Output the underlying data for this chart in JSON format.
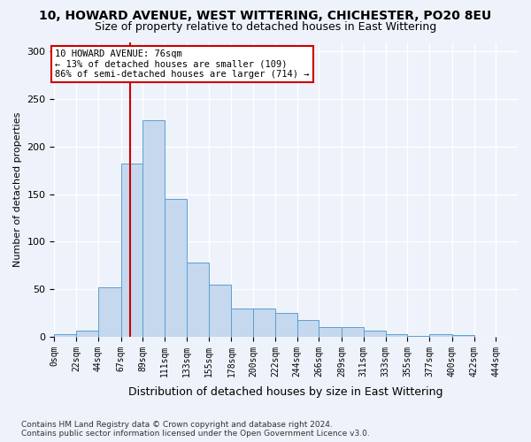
{
  "title": "10, HOWARD AVENUE, WEST WITTERING, CHICHESTER, PO20 8EU",
  "subtitle": "Size of property relative to detached houses in East Wittering",
  "xlabel": "Distribution of detached houses by size in East Wittering",
  "ylabel": "Number of detached properties",
  "bar_color": "#c5d8ed",
  "bar_edge_color": "#5a9fd4",
  "background_color": "#eef2fa",
  "grid_color": "#ffffff",
  "bin_edges": [
    0,
    22,
    44,
    67,
    89,
    111,
    133,
    155,
    178,
    200,
    222,
    244,
    266,
    289,
    311,
    333,
    355,
    377,
    400,
    422,
    444,
    466
  ],
  "bin_labels": [
    "0sqm",
    "22sqm",
    "44sqm",
    "67sqm",
    "89sqm",
    "111sqm",
    "133sqm",
    "155sqm",
    "178sqm",
    "200sqm",
    "222sqm",
    "244sqm",
    "266sqm",
    "289sqm",
    "311sqm",
    "333sqm",
    "355sqm",
    "377sqm",
    "400sqm",
    "422sqm",
    "444sqm"
  ],
  "bar_heights": [
    3,
    6,
    52,
    182,
    228,
    145,
    78,
    55,
    30,
    30,
    25,
    18,
    10,
    10,
    6,
    3,
    1,
    3,
    2,
    0,
    0
  ],
  "property_size": 76,
  "property_label": "10 HOWARD AVENUE: 76sqm",
  "annotation_line1": "← 13% of detached houses are smaller (109)",
  "annotation_line2": "86% of semi-detached houses are larger (714) →",
  "vline_color": "#cc0000",
  "annotation_box_edge": "#cc0000",
  "footer_line1": "Contains HM Land Registry data © Crown copyright and database right 2024.",
  "footer_line2": "Contains public sector information licensed under the Open Government Licence v3.0.",
  "ylim": [
    0,
    310
  ],
  "yticks": [
    0,
    50,
    100,
    150,
    200,
    250,
    300
  ],
  "figsize": [
    6.0,
    5.0
  ],
  "dpi": 100
}
